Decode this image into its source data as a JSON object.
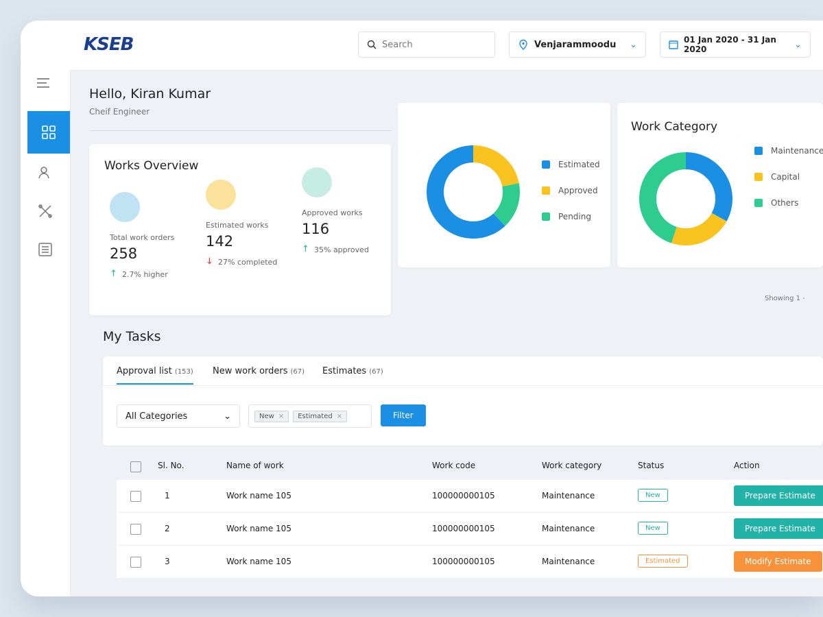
{
  "header": {
    "logo": "KSEB",
    "search_placeholder": "Search",
    "location": "Venjarammoodu",
    "date_range": "01 Jan 2020 - 31 Jan 2020"
  },
  "greeting": {
    "title": "Hello, Kiran Kumar",
    "role": "Cheif Engineer"
  },
  "works_overview": {
    "title": "Works Overview",
    "stats": [
      {
        "label": "Total work orders",
        "value": 258,
        "change": "2.7% higher",
        "trend": "up",
        "color": "#bfe3f3"
      },
      {
        "label": "Estimated works",
        "value": 142,
        "change": "27% completed",
        "trend": "down",
        "color": "#fbe29a"
      },
      {
        "label": "Approved works",
        "value": 116,
        "change": "35% approved",
        "trend": "up",
        "color": "#c7ece3"
      }
    ]
  },
  "chart_data": [
    {
      "type": "donut",
      "categories": [
        "Estimated",
        "Approved",
        "Pending"
      ],
      "values": [
        62,
        22,
        16
      ],
      "colors": [
        "#1a8fe3",
        "#f9c31f",
        "#2ecc8f"
      ]
    },
    {
      "type": "donut",
      "title": "Work Category",
      "categories": [
        "Maintenance",
        "Capital",
        "Others"
      ],
      "values": [
        33,
        22,
        45
      ],
      "colors": [
        "#1a8fe3",
        "#f9c31f",
        "#2ecc8f"
      ]
    }
  ],
  "showing": "Showing 1 -",
  "tasks": {
    "title": "My Tasks",
    "tabs": [
      {
        "label": "Approval list",
        "count": "(153)"
      },
      {
        "label": "New work orders",
        "count": "(67)"
      },
      {
        "label": "Estimates",
        "count": "(67)"
      }
    ],
    "category_filter": "All Categories",
    "tags": [
      "New",
      "Estimated"
    ],
    "filter_button": "Filter",
    "columns": [
      "Sl. No.",
      "Name of work",
      "Work code",
      "Work category",
      "Status",
      "Action"
    ],
    "rows": [
      {
        "sl": "1",
        "name": "Work name 105",
        "code": "100000000105",
        "category": "Maintenance",
        "status": "New",
        "action": "Prepare Estimate",
        "color": "#22b3a8"
      },
      {
        "sl": "2",
        "name": "Work name 105",
        "code": "100000000105",
        "category": "Maintenance",
        "status": "New",
        "action": "Prepare Estimate",
        "color": "#22b3a8"
      },
      {
        "sl": "3",
        "name": "Work name 105",
        "code": "100000000105",
        "category": "Maintenance",
        "status": "Estimated",
        "action": "Modify Estimate",
        "color": "#f7923a"
      }
    ]
  }
}
